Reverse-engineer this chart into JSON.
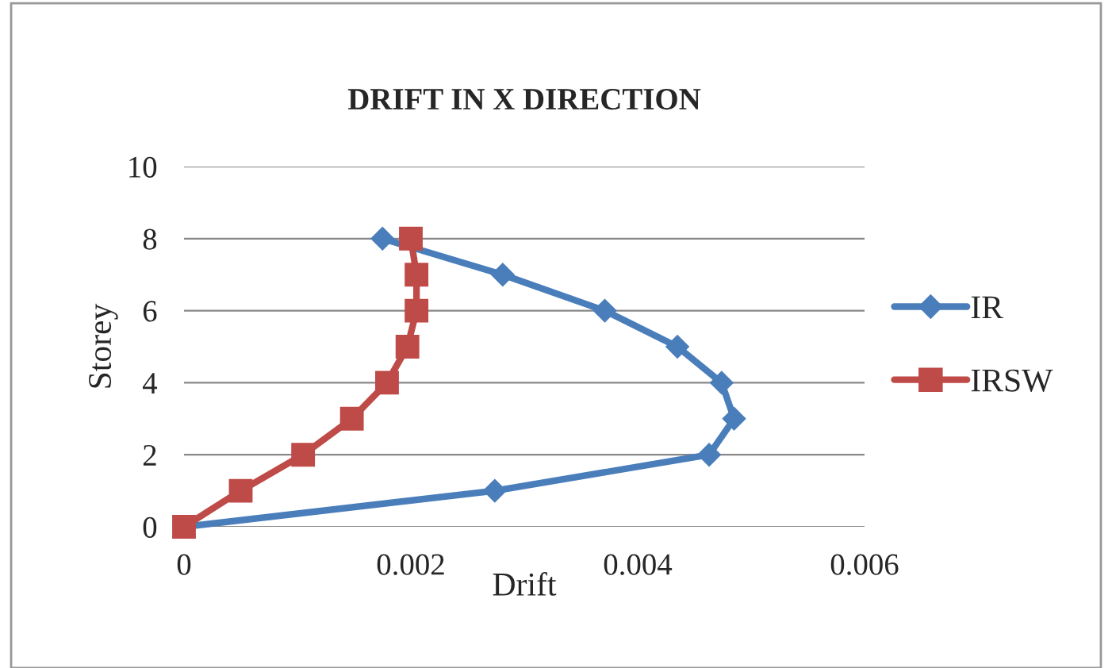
{
  "chart_data": {
    "type": "line",
    "title": "DRIFT IN X DIRECTION",
    "xlabel": "Drift",
    "ylabel": "Storey",
    "series": [
      {
        "name": "IR",
        "color": "#4a7ebb",
        "marker": "diamond",
        "x": [
          0,
          0.00274,
          0.00463,
          0.00485,
          0.00474,
          0.00435,
          0.00371,
          0.00281,
          0.00175
        ],
        "values": [
          0,
          1,
          2,
          3,
          4,
          5,
          6,
          7,
          8
        ]
      },
      {
        "name": "IRSW",
        "color": "#be4b48",
        "marker": "square",
        "x": [
          0,
          0.0005,
          0.00105,
          0.00148,
          0.00179,
          0.00197,
          0.00205,
          0.00205,
          0.002
        ],
        "values": [
          0,
          1,
          2,
          3,
          4,
          5,
          6,
          7,
          8
        ]
      }
    ],
    "xlim": [
      0,
      0.006
    ],
    "xticks": [
      0,
      0.002,
      0.004,
      0.006
    ],
    "ylim": [
      0,
      10
    ],
    "yticks": [
      0,
      2,
      4,
      6,
      8,
      10
    ],
    "grid": "y",
    "legend": "right"
  }
}
